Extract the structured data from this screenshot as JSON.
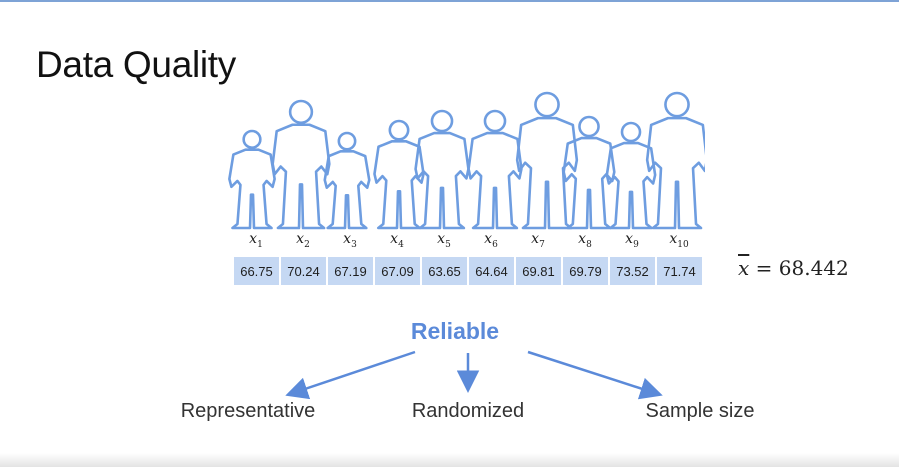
{
  "title": "Data Quality",
  "samples": {
    "labels": [
      {
        "base": "x",
        "sub": "1"
      },
      {
        "base": "x",
        "sub": "2"
      },
      {
        "base": "x",
        "sub": "3"
      },
      {
        "base": "x",
        "sub": "4"
      },
      {
        "base": "x",
        "sub": "5"
      },
      {
        "base": "x",
        "sub": "6"
      },
      {
        "base": "x",
        "sub": "7"
      },
      {
        "base": "x",
        "sub": "8"
      },
      {
        "base": "x",
        "sub": "9"
      },
      {
        "base": "x",
        "sub": "10"
      }
    ],
    "values": [
      "66.75",
      "70.24",
      "67.19",
      "67.09",
      "63.65",
      "64.64",
      "69.81",
      "69.79",
      "73.52",
      "71.74"
    ]
  },
  "mean": {
    "symbol": "x",
    "operator": "=",
    "value": "68.442"
  },
  "diagram": {
    "root": "Reliable",
    "children": [
      "Representative",
      "Randomized",
      "Sample size"
    ],
    "accent_color": "#5b8ad9"
  },
  "icons": {
    "people": "people-silhouettes-icon"
  }
}
